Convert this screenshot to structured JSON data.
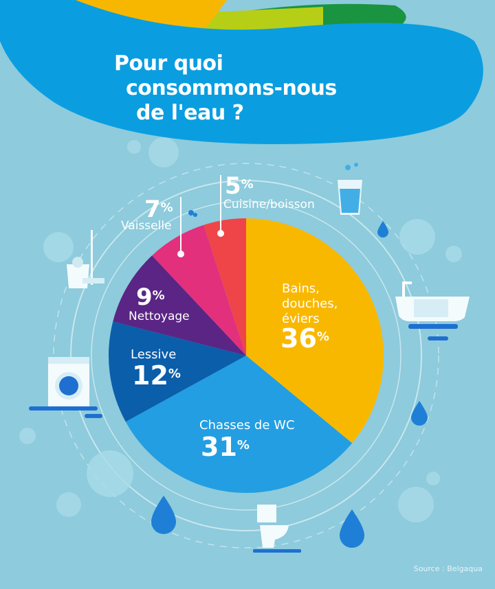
{
  "title_lines": [
    "Pour quoi",
    "consommons-nous",
    "de l'eau ?"
  ],
  "source": "Source : Belgaqua",
  "colors": {
    "background": "#8ecbdc",
    "header": "#0a9ee0"
  },
  "chart_data": {
    "type": "pie",
    "start": "top",
    "direction": "clockwise",
    "slices": [
      {
        "label": "Bains, douches, éviers",
        "value": 36,
        "pct_text": "36",
        "color": "#f9b800"
      },
      {
        "label": "Chasses de WC",
        "value": 31,
        "pct_text": "31",
        "color": "#239ee2"
      },
      {
        "label": "Lessive",
        "value": 12,
        "pct_text": "12",
        "color": "#0b5eaa"
      },
      {
        "label": "Nettoyage",
        "value": 9,
        "pct_text": "9",
        "color": "#5a2584"
      },
      {
        "label": "Vaisselle",
        "value": 7,
        "pct_text": "7",
        "color": "#e2307d"
      },
      {
        "label": "Cuisine/boisson",
        "value": 5,
        "pct_text": "5",
        "color": "#ef4548"
      }
    ],
    "percent_sign": "%",
    "icons": [
      "glass-of-water-icon",
      "bathtub-icon",
      "toilet-icon",
      "washing-machine-icon",
      "bucket-mop-icon",
      "water-drop-icon"
    ]
  }
}
